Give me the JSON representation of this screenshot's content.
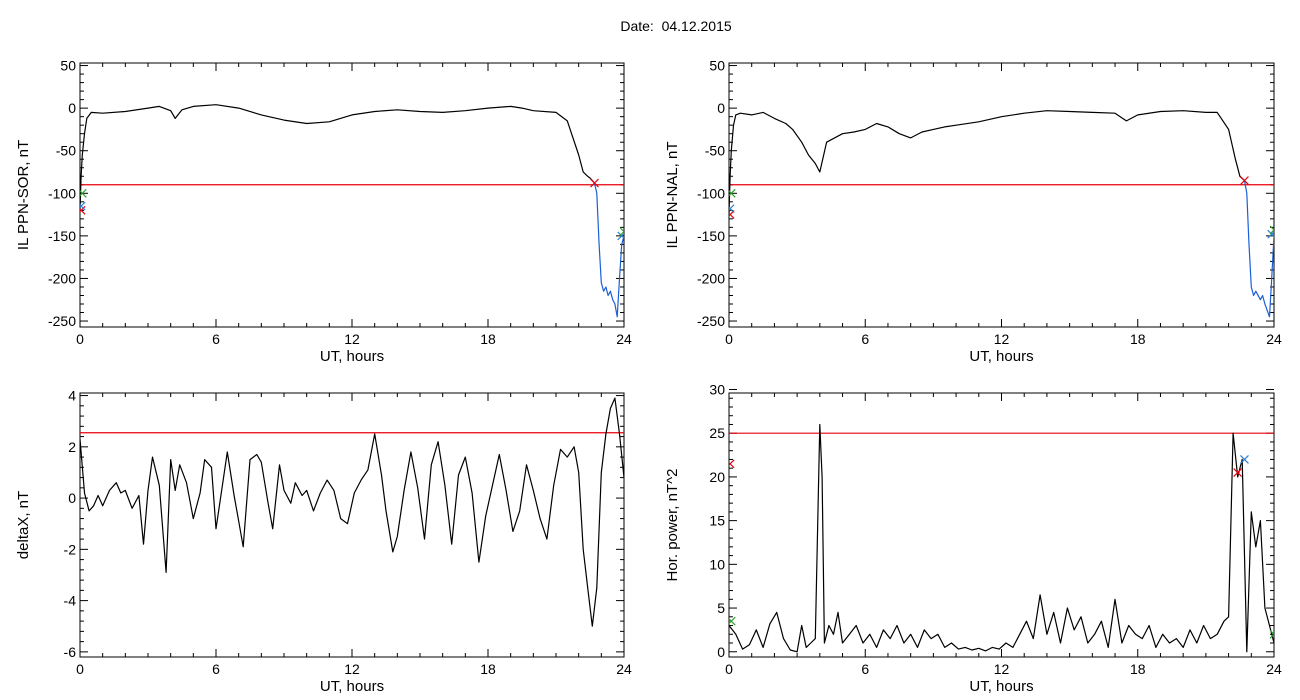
{
  "header": {
    "date_label": "Date:",
    "date_value": "04.12.2015"
  },
  "colors": {
    "threshold": "#e8000b",
    "data_line": "#000000",
    "highlight": "#1a5fd6",
    "marker_red": "#e8000b",
    "marker_blue": "#2a7fd6",
    "marker_green": "#2ca02c"
  },
  "chart_data": [
    {
      "type": "line",
      "id": "ppn-sor",
      "title": "",
      "xlabel": "UT, hours",
      "ylabel": "IL PPN-SOR, nT",
      "xlim": [
        0,
        24
      ],
      "ylim": [
        -257,
        53
      ],
      "xticks": [
        0,
        6,
        12,
        18,
        24
      ],
      "yticks": [
        50,
        0,
        -50,
        -100,
        -150,
        -200,
        -250
      ],
      "threshold": -90,
      "series": [
        {
          "x": [
            0,
            0.05,
            0.1,
            0.2,
            0.3,
            0.5,
            1,
            2,
            3,
            3.5,
            4,
            4.2,
            4.5,
            5,
            6,
            7,
            8,
            9,
            10,
            11,
            12,
            13,
            14,
            15,
            16,
            17,
            18,
            19,
            19.5,
            20,
            21,
            21.5,
            22,
            22.2,
            22.4,
            22.5,
            22.6,
            22.7
          ],
          "y": [
            -120,
            -80,
            -55,
            -30,
            -12,
            -5,
            -6,
            -4,
            0,
            2,
            -3,
            -12,
            -2,
            2,
            4,
            0,
            -8,
            -14,
            -18,
            -16,
            -8,
            -4,
            -2,
            -4,
            -5,
            -3,
            0,
            2,
            0,
            -3,
            -5,
            -15,
            -55,
            -75,
            -80,
            -82,
            -85,
            -88
          ]
        },
        {
          "name": "highlight",
          "x": [
            22.7,
            22.8,
            22.9,
            23.0,
            23.1,
            23.2,
            23.3,
            23.4,
            23.5,
            23.6,
            23.7,
            23.8,
            23.9,
            24.0
          ],
          "y": [
            -88,
            -100,
            -160,
            -205,
            -215,
            -210,
            -220,
            -215,
            -225,
            -230,
            -245,
            -200,
            -160,
            -150
          ]
        }
      ],
      "markers": [
        {
          "x": 0.05,
          "y": -120,
          "color": "red"
        },
        {
          "x": 0.05,
          "y": -115,
          "color": "blue"
        },
        {
          "x": 0.1,
          "y": -100,
          "color": "green"
        },
        {
          "x": 22.7,
          "y": -88,
          "color": "red"
        },
        {
          "x": 23.9,
          "y": -150,
          "color": "blue"
        },
        {
          "x": 24.0,
          "y": -145,
          "color": "green"
        }
      ]
    },
    {
      "type": "line",
      "id": "ppn-nal",
      "title": "",
      "xlabel": "UT, hours",
      "ylabel": "IL PPN-NAL, nT",
      "xlim": [
        0,
        24
      ],
      "ylim": [
        -257,
        53
      ],
      "xticks": [
        0,
        6,
        12,
        18,
        24
      ],
      "yticks": [
        50,
        0,
        -50,
        -100,
        -150,
        -200,
        -250
      ],
      "threshold": -90,
      "series": [
        {
          "x": [
            0,
            0.05,
            0.1,
            0.2,
            0.3,
            0.5,
            1,
            1.5,
            2,
            2.5,
            2.8,
            3.2,
            3.5,
            3.8,
            4.0,
            4.3,
            5,
            5.5,
            6,
            6.5,
            7,
            7.5,
            8,
            8.5,
            9,
            9.5,
            10,
            11,
            12,
            13,
            14,
            15,
            16,
            17,
            17.5,
            18,
            19,
            20,
            21,
            21.5,
            22,
            22.3,
            22.5,
            22.7
          ],
          "y": [
            -125,
            -80,
            -50,
            -20,
            -8,
            -6,
            -8,
            -5,
            -12,
            -18,
            -25,
            -40,
            -55,
            -65,
            -75,
            -40,
            -30,
            -28,
            -25,
            -18,
            -22,
            -30,
            -35,
            -28,
            -25,
            -22,
            -20,
            -16,
            -10,
            -6,
            -3,
            -4,
            -5,
            -6,
            -15,
            -8,
            -4,
            -3,
            -5,
            -5,
            -25,
            -60,
            -80,
            -85
          ]
        },
        {
          "name": "highlight",
          "x": [
            22.7,
            22.8,
            22.9,
            23.0,
            23.1,
            23.2,
            23.4,
            23.5,
            23.6,
            23.8,
            23.9,
            24.0
          ],
          "y": [
            -85,
            -100,
            -160,
            -210,
            -220,
            -215,
            -225,
            -220,
            -230,
            -245,
            -200,
            -150
          ]
        }
      ],
      "markers": [
        {
          "x": 0.05,
          "y": -125,
          "color": "red"
        },
        {
          "x": 0.05,
          "y": -118,
          "color": "blue"
        },
        {
          "x": 0.1,
          "y": -100,
          "color": "green"
        },
        {
          "x": 22.7,
          "y": -85,
          "color": "red"
        },
        {
          "x": 23.9,
          "y": -148,
          "color": "blue"
        },
        {
          "x": 24.0,
          "y": -143,
          "color": "green"
        }
      ]
    },
    {
      "type": "line",
      "id": "deltax",
      "title": "",
      "xlabel": "UT, hours",
      "ylabel": "deltaX, nT",
      "xlim": [
        0,
        24
      ],
      "ylim": [
        -6.2,
        4.1
      ],
      "xticks": [
        0,
        6,
        12,
        18,
        24
      ],
      "yticks": [
        4,
        2,
        0,
        -2,
        -4,
        -6
      ],
      "threshold": 2.55,
      "series": [
        {
          "x": [
            0,
            0.2,
            0.4,
            0.6,
            0.8,
            1.0,
            1.3,
            1.6,
            1.8,
            2.0,
            2.3,
            2.6,
            2.8,
            3.0,
            3.2,
            3.5,
            3.8,
            4.0,
            4.2,
            4.4,
            4.7,
            5.0,
            5.3,
            5.5,
            5.8,
            6.0,
            6.3,
            6.5,
            6.8,
            7.0,
            7.2,
            7.5,
            7.8,
            8.0,
            8.3,
            8.5,
            8.8,
            9.0,
            9.3,
            9.5,
            9.8,
            10.0,
            10.3,
            10.6,
            10.9,
            11.2,
            11.5,
            11.8,
            12.1,
            12.4,
            12.7,
            13.0,
            13.3,
            13.5,
            13.8,
            14.0,
            14.3,
            14.6,
            14.9,
            15.2,
            15.5,
            15.8,
            16.1,
            16.4,
            16.7,
            17.0,
            17.3,
            17.6,
            17.9,
            18.2,
            18.5,
            18.8,
            19.1,
            19.4,
            19.7,
            20.0,
            20.3,
            20.6,
            20.9,
            21.2,
            21.5,
            21.8,
            22.0,
            22.2,
            22.4,
            22.6,
            22.8,
            23.0,
            23.2,
            23.4,
            23.6,
            23.8,
            24.0
          ],
          "y": [
            2.3,
            0.2,
            -0.5,
            -0.3,
            0.1,
            -0.3,
            0.3,
            0.6,
            0.2,
            0.3,
            -0.4,
            0.1,
            -1.8,
            0.3,
            1.6,
            0.5,
            -2.9,
            1.5,
            0.3,
            1.3,
            0.6,
            -0.8,
            0.2,
            1.5,
            1.2,
            -1.2,
            0.6,
            1.8,
            0.1,
            -0.9,
            -1.9,
            1.5,
            1.7,
            1.4,
            -0.2,
            -1.2,
            1.3,
            0.3,
            -0.2,
            0.6,
            0.1,
            0.3,
            -0.5,
            0.2,
            0.7,
            0.3,
            -0.8,
            -1.0,
            0.2,
            0.7,
            1.1,
            2.5,
            0.9,
            -0.5,
            -2.1,
            -1.5,
            0.3,
            1.8,
            0.4,
            -1.6,
            1.3,
            2.2,
            0.5,
            -1.8,
            0.9,
            1.6,
            0.2,
            -2.5,
            -0.7,
            0.5,
            1.7,
            0.3,
            -1.3,
            -0.5,
            1.3,
            0.3,
            -0.8,
            -1.6,
            0.5,
            1.9,
            1.6,
            2.0,
            1.0,
            -2.0,
            -3.5,
            -5.0,
            -3.5,
            1.0,
            2.5,
            3.5,
            3.9,
            2.5,
            0.8
          ]
        }
      ],
      "markers": []
    },
    {
      "type": "line",
      "id": "hor-power",
      "title": "",
      "xlabel": "UT, hours",
      "ylabel": "Hor. power, nT^2",
      "xlim": [
        0,
        24
      ],
      "ylim": [
        -0.6,
        29.6
      ],
      "xticks": [
        0,
        6,
        12,
        18,
        24
      ],
      "yticks": [
        30,
        25,
        20,
        15,
        10,
        5,
        0
      ],
      "threshold": 25,
      "series": [
        {
          "x": [
            0,
            0.3,
            0.6,
            0.9,
            1.2,
            1.5,
            1.8,
            2.1,
            2.4,
            2.7,
            3.0,
            3.2,
            3.4,
            3.6,
            3.8,
            4.0,
            4.1,
            4.2,
            4.4,
            4.6,
            4.8,
            5.0,
            5.3,
            5.6,
            5.9,
            6.2,
            6.5,
            6.8,
            7.1,
            7.4,
            7.7,
            8.0,
            8.3,
            8.6,
            8.9,
            9.2,
            9.5,
            9.8,
            10.1,
            10.4,
            10.7,
            11.0,
            11.3,
            11.6,
            11.9,
            12.2,
            12.5,
            12.8,
            13.1,
            13.4,
            13.7,
            14.0,
            14.3,
            14.6,
            14.9,
            15.2,
            15.5,
            15.8,
            16.1,
            16.4,
            16.7,
            17.0,
            17.3,
            17.6,
            17.9,
            18.2,
            18.5,
            18.8,
            19.1,
            19.4,
            19.7,
            20.0,
            20.3,
            20.6,
            20.9,
            21.2,
            21.5,
            21.8,
            22.0,
            22.2,
            22.4,
            22.6,
            22.8,
            23.0,
            23.2,
            23.4,
            23.6,
            23.8,
            24.0
          ],
          "y": [
            3.0,
            2.0,
            0.3,
            0.8,
            2.5,
            0.5,
            3.2,
            4.5,
            1.5,
            0.2,
            0,
            3.0,
            0.5,
            1.0,
            1.5,
            26.0,
            20.0,
            1.0,
            3.0,
            2.0,
            4.5,
            1.0,
            2.0,
            3.0,
            1.0,
            2.0,
            0.5,
            2.5,
            1.5,
            3.0,
            1.0,
            2.0,
            0.5,
            2.5,
            1.5,
            2.0,
            0.5,
            1.0,
            0.3,
            0.5,
            0.2,
            0.4,
            0.1,
            0.5,
            0.3,
            1.0,
            0.5,
            2.0,
            3.5,
            1.5,
            6.5,
            2.0,
            4.5,
            1.0,
            5.0,
            2.5,
            4.0,
            1.0,
            2.0,
            3.5,
            0.5,
            6.0,
            1.0,
            3.0,
            2.0,
            1.5,
            3.0,
            0.5,
            2.0,
            1.0,
            1.5,
            0.5,
            2.5,
            1.0,
            3.0,
            1.5,
            2.0,
            3.5,
            4.0,
            25.0,
            20.0,
            22.0,
            0,
            16.0,
            12.0,
            15.0,
            5.0,
            3.0,
            1.0
          ]
        }
      ],
      "markers": [
        {
          "x": 0.05,
          "y": 21.5,
          "color": "red"
        },
        {
          "x": 0.1,
          "y": 3.5,
          "color": "green"
        },
        {
          "x": 22.4,
          "y": 20.5,
          "color": "red"
        },
        {
          "x": 22.7,
          "y": 22.0,
          "color": "blue"
        },
        {
          "x": 24.0,
          "y": 2.0,
          "color": "green"
        }
      ]
    }
  ]
}
